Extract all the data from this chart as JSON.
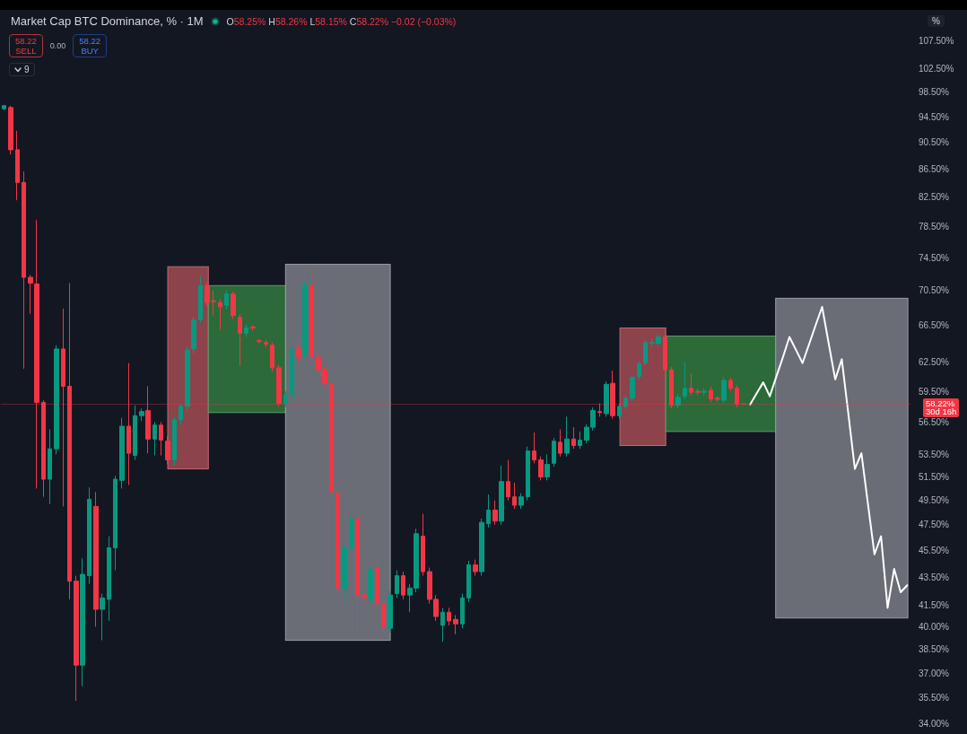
{
  "chart_data": {
    "type": "candlestick",
    "title": "Market Cap BTC Dominance, % · 1M",
    "categories": [
      null,
      null,
      null,
      null,
      null,
      null,
      null,
      null,
      null,
      null,
      null,
      null,
      null,
      null,
      null,
      null,
      null,
      null,
      null,
      null,
      null,
      null,
      null,
      null,
      null,
      null,
      null,
      null,
      null,
      null,
      null,
      null,
      null,
      null,
      null,
      null,
      null,
      null,
      null,
      null,
      null,
      null,
      null,
      null,
      null,
      null,
      null,
      null,
      null,
      null,
      null,
      null,
      null,
      null,
      null,
      null,
      null,
      null,
      null,
      null,
      null,
      null,
      null,
      null,
      null,
      null,
      null,
      null,
      null,
      null,
      null,
      null,
      null,
      null,
      null,
      null,
      null,
      null,
      null,
      null,
      null,
      null,
      null,
      null,
      null,
      null,
      null,
      null,
      null,
      null,
      null,
      null,
      null,
      null,
      null,
      null,
      null,
      null,
      null,
      null,
      null,
      null,
      null,
      null,
      null,
      null,
      null,
      null,
      null,
      null,
      null,
      null,
      null,
      null,
      null,
      null,
      null,
      null,
      null,
      null,
      null,
      null,
      null,
      null,
      null,
      null,
      null,
      null,
      null,
      null,
      null,
      null,
      null,
      null,
      null,
      null,
      null,
      null,
      null
    ],
    "ohlc": [
      [
        95.8,
        96.4,
        95.6,
        96.3
      ],
      [
        96.0,
        96.3,
        88.7,
        89.4
      ],
      [
        89.4,
        92.3,
        82.1,
        84.6
      ],
      [
        84.6,
        86.2,
        61.8,
        72.1
      ],
      [
        72.1,
        72.4,
        67.8,
        71.4
      ],
      [
        71.3,
        79.4,
        50.5,
        58.4
      ],
      [
        58.4,
        58.6,
        49.8,
        51.3
      ],
      [
        51.3,
        55.8,
        49.2,
        54.0
      ],
      [
        54.0,
        64.3,
        53.5,
        63.9
      ],
      [
        63.9,
        68.4,
        49.0,
        60.0
      ],
      [
        60.0,
        71.4,
        41.9,
        43.2
      ],
      [
        43.2,
        43.6,
        35.3,
        37.5
      ],
      [
        37.5,
        44.9,
        36.2,
        43.7
      ],
      [
        43.6,
        50.6,
        43.0,
        49.6
      ],
      [
        49.0,
        50.2,
        40.0,
        41.2
      ],
      [
        41.2,
        42.3,
        39.1,
        42.0
      ],
      [
        41.9,
        46.6,
        40.4,
        45.7
      ],
      [
        45.7,
        51.6,
        44.0,
        51.3
      ],
      [
        51.2,
        56.9,
        50.5,
        56.1
      ],
      [
        56.1,
        62.4,
        50.8,
        53.6
      ],
      [
        53.4,
        58.1,
        53.0,
        57.1
      ],
      [
        57.1,
        57.8,
        56.6,
        57.5
      ],
      [
        57.6,
        60.0,
        53.6,
        54.9
      ],
      [
        54.9,
        56.5,
        53.4,
        56.2
      ],
      [
        56.2,
        56.5,
        53.4,
        54.8
      ],
      [
        54.7,
        55.2,
        52.6,
        53.0
      ],
      [
        53.0,
        57.0,
        52.5,
        56.7
      ],
      [
        56.7,
        58.3,
        56.2,
        58.0
      ],
      [
        58.0,
        64.2,
        57.6,
        63.8
      ],
      [
        63.9,
        67.5,
        63.4,
        67.1
      ],
      [
        67.1,
        72.2,
        66.8,
        71.1
      ],
      [
        71.1,
        71.6,
        68.6,
        69.1
      ],
      [
        69.3,
        70.5,
        67.6,
        69.2
      ],
      [
        69.1,
        69.5,
        66.0,
        68.6
      ],
      [
        68.8,
        70.5,
        68.3,
        70.1
      ],
      [
        70.1,
        70.4,
        67.2,
        67.6
      ],
      [
        67.4,
        67.8,
        62.1,
        65.6
      ],
      [
        65.6,
        66.6,
        65.2,
        66.2
      ],
      [
        66.3,
        66.5,
        65.9,
        66.2
      ],
      [
        64.8,
        65.0,
        64.5,
        64.7
      ],
      [
        64.6,
        64.9,
        64.1,
        64.4
      ],
      [
        64.3,
        64.6,
        61.5,
        61.9
      ],
      [
        61.9,
        62.2,
        58.0,
        58.3
      ],
      [
        58.3,
        59.5,
        57.9,
        59.1
      ],
      [
        59.1,
        64.2,
        58.8,
        63.9
      ],
      [
        63.9,
        64.5,
        62.6,
        63.1
      ],
      [
        63.3,
        71.6,
        62.9,
        71.1
      ],
      [
        71.1,
        73.3,
        62.6,
        63.1
      ],
      [
        63.0,
        63.4,
        61.4,
        61.7
      ],
      [
        61.7,
        62.0,
        60.0,
        60.3
      ],
      [
        60.2,
        60.6,
        49.8,
        50.2
      ],
      [
        50.1,
        50.4,
        42.3,
        42.7
      ],
      [
        42.7,
        46.0,
        41.8,
        45.7
      ],
      [
        45.7,
        48.5,
        45.3,
        48.0
      ],
      [
        48.0,
        48.4,
        39.6,
        42.2
      ],
      [
        42.2,
        42.5,
        41.7,
        42.0
      ],
      [
        41.9,
        44.3,
        41.6,
        44.0
      ],
      [
        44.2,
        44.6,
        41.3,
        41.6
      ],
      [
        41.6,
        41.9,
        39.7,
        40.0
      ],
      [
        39.9,
        42.5,
        39.6,
        42.2
      ],
      [
        42.3,
        44.0,
        42.0,
        43.6
      ],
      [
        43.6,
        43.9,
        41.9,
        42.2
      ],
      [
        42.2,
        43.0,
        41.0,
        42.7
      ],
      [
        42.7,
        47.2,
        42.4,
        46.8
      ],
      [
        46.6,
        48.4,
        43.6,
        43.9
      ],
      [
        43.9,
        44.2,
        41.6,
        41.9
      ],
      [
        41.9,
        42.2,
        40.4,
        40.7
      ],
      [
        40.1,
        41.3,
        39.0,
        41.0
      ],
      [
        41.0,
        41.3,
        40.1,
        40.4
      ],
      [
        40.5,
        40.8,
        39.5,
        40.2
      ],
      [
        40.2,
        42.3,
        39.9,
        42.0
      ],
      [
        42.0,
        44.7,
        41.7,
        44.4
      ],
      [
        44.4,
        44.8,
        43.6,
        43.9
      ],
      [
        43.9,
        48.0,
        43.6,
        47.7
      ],
      [
        47.6,
        50.0,
        47.3,
        48.7
      ],
      [
        48.7,
        49.5,
        47.5,
        47.8
      ],
      [
        47.8,
        52.5,
        47.5,
        51.1
      ],
      [
        51.1,
        53.0,
        49.5,
        49.8
      ],
      [
        49.8,
        51.0,
        48.8,
        49.1
      ],
      [
        49.1,
        50.1,
        48.8,
        49.8
      ],
      [
        49.8,
        54.2,
        49.5,
        53.8
      ],
      [
        53.8,
        55.5,
        52.7,
        53.0
      ],
      [
        53.0,
        53.3,
        51.2,
        51.5
      ],
      [
        51.5,
        53.5,
        51.2,
        52.6
      ],
      [
        52.7,
        55.0,
        52.4,
        54.7
      ],
      [
        54.6,
        55.8,
        53.3,
        53.6
      ],
      [
        53.6,
        57.0,
        53.3,
        54.9
      ],
      [
        54.9,
        56.0,
        54.0,
        54.3
      ],
      [
        54.3,
        55.6,
        54.0,
        54.8
      ],
      [
        54.8,
        56.3,
        54.5,
        56.0
      ],
      [
        56.0,
        57.9,
        55.7,
        57.6
      ],
      [
        57.5,
        58.3,
        57.0,
        57.4
      ],
      [
        57.3,
        60.5,
        57.0,
        60.2
      ],
      [
        60.3,
        61.6,
        56.8,
        57.1
      ],
      [
        57.1,
        58.3,
        56.8,
        58.0
      ],
      [
        58.0,
        59.1,
        57.7,
        58.8
      ],
      [
        58.8,
        61.2,
        58.5,
        60.9
      ],
      [
        61.0,
        62.6,
        60.7,
        62.3
      ],
      [
        62.4,
        64.9,
        62.1,
        64.6
      ],
      [
        64.5,
        65.0,
        64.1,
        64.6
      ],
      [
        64.5,
        65.5,
        64.2,
        65.2
      ],
      [
        65.2,
        65.5,
        61.4,
        61.7
      ],
      [
        61.7,
        62.0,
        57.8,
        58.1
      ],
      [
        58.1,
        59.2,
        57.8,
        58.9
      ],
      [
        59.0,
        62.5,
        58.7,
        59.8
      ],
      [
        59.8,
        61.3,
        59.1,
        59.4
      ],
      [
        59.5,
        59.8,
        59.1,
        59.4
      ],
      [
        59.4,
        59.8,
        59.1,
        59.5
      ],
      [
        59.6,
        60.0,
        58.4,
        58.7
      ],
      [
        58.8,
        59.0,
        58.5,
        58.7
      ],
      [
        58.6,
        60.9,
        58.3,
        60.6
      ],
      [
        60.6,
        60.9,
        59.5,
        59.8
      ],
      [
        59.8,
        60.1,
        57.9,
        58.2
      ],
      [
        58.25,
        58.26,
        58.15,
        58.22
      ],
      null,
      null,
      null,
      null,
      null,
      null,
      null,
      null,
      null,
      null,
      null,
      null,
      null,
      null,
      null,
      null,
      null,
      null,
      null,
      null,
      null,
      null,
      null,
      null,
      null
    ],
    "colors": [
      "#089981",
      "#f23645",
      "#f23645",
      "#f23645",
      "#f23645",
      "#f23645",
      "#f23645",
      "#089981",
      "#089981",
      "#f23645",
      "#f23645",
      "#f23645",
      "#089981",
      "#089981",
      "#f23645",
      "#089981",
      "#089981",
      "#089981",
      "#089981",
      "#f23645",
      "#089981",
      "#089981",
      "#f23645",
      "#089981",
      "#f23645",
      "#f23645",
      "#089981",
      "#089981",
      "#089981",
      "#089981",
      "#089981",
      "#f23645",
      "#f23645",
      "#f23645",
      "#089981",
      "#f23645",
      "#f23645",
      "#089981",
      "#f23645",
      "#f23645",
      "#f23645",
      "#f23645",
      "#f23645",
      "#089981",
      "#089981",
      "#f23645",
      "#089981",
      "#f23645",
      "#f23645",
      "#f23645",
      "#f23645",
      "#f23645",
      "#089981",
      "#089981",
      "#f23645",
      "#f23645",
      "#089981",
      "#f23645",
      "#f23645",
      "#089981",
      "#089981",
      "#f23645",
      "#089981",
      "#089981",
      "#f23645",
      "#f23645",
      "#f23645",
      "#089981",
      "#f23645",
      "#f23645",
      "#089981",
      "#089981",
      "#f23645",
      "#089981",
      "#089981",
      "#f23645",
      "#089981",
      "#f23645",
      "#f23645",
      "#089981",
      "#089981",
      "#f23645",
      "#f23645",
      "#089981",
      "#089981",
      "#f23645",
      "#089981",
      "#f23645",
      "#089981",
      "#089981",
      "#089981",
      "#f23645",
      "#089981",
      "#f23645",
      "#089981",
      "#089981",
      "#089981",
      "#089981",
      "#089981",
      "#089981",
      "#089981",
      "#f23645",
      "#f23645",
      "#089981",
      "#089981",
      "#f23645",
      "#f23645",
      "#089981",
      "#f23645",
      "#f23645",
      "#089981",
      "#f23645",
      "#f23645",
      "#f23645",
      null,
      null,
      null,
      null,
      null,
      null,
      null,
      null,
      null,
      null,
      null,
      null,
      null,
      null,
      null,
      null,
      null,
      null,
      null,
      null,
      null,
      null,
      null,
      null,
      null
    ],
    "series": [
      {
        "type": "line",
        "color": "#ffffff",
        "values": [
          null,
          null,
          null,
          null,
          null,
          null,
          null,
          null,
          null,
          null,
          null,
          null,
          null,
          null,
          null,
          null,
          null,
          null,
          null,
          null,
          null,
          null,
          null,
          null,
          null,
          null,
          null,
          null,
          null,
          null,
          null,
          null,
          null,
          null,
          null,
          null,
          null,
          null,
          null,
          null,
          null,
          null,
          null,
          null,
          null,
          null,
          null,
          null,
          null,
          null,
          null,
          null,
          null,
          null,
          null,
          null,
          null,
          null,
          null,
          null,
          null,
          null,
          null,
          null,
          null,
          null,
          null,
          null,
          null,
          null,
          null,
          null,
          null,
          null,
          null,
          null,
          null,
          null,
          null,
          null,
          null,
          null,
          null,
          null,
          null,
          null,
          null,
          null,
          null,
          null,
          null,
          null,
          null,
          null,
          null,
          null,
          null,
          null,
          null,
          null,
          null,
          null,
          null,
          null,
          null,
          null,
          null,
          null,
          null,
          null,
          null,
          null,
          null,
          null,
          58.2,
          59.3,
          60.4,
          59.0,
          61.0,
          63.0,
          65.2,
          63.8,
          62.4,
          64.4,
          66.5,
          68.6,
          64.5,
          60.7,
          62.8,
          57.3,
          52.2,
          53.6,
          49.2,
          45.2,
          46.6,
          41.3,
          44.1,
          42.4,
          42.9
        ]
      }
    ],
    "ylim": [
      34,
      107.5
    ],
    "yticks": [
      {
        "value": 107.5,
        "label": "107.50%"
      },
      {
        "value": 102.5,
        "label": "102.50%"
      },
      {
        "value": 98.5,
        "label": "98.50%"
      },
      {
        "value": 94.5,
        "label": "94.50%"
      },
      {
        "value": 90.5,
        "label": "90.50%"
      },
      {
        "value": 86.5,
        "label": "86.50%"
      },
      {
        "value": 82.5,
        "label": "82.50%"
      },
      {
        "value": 78.5,
        "label": "78.50%"
      },
      {
        "value": 74.5,
        "label": "74.50%"
      },
      {
        "value": 70.5,
        "label": "70.50%"
      },
      {
        "value": 66.5,
        "label": "66.50%"
      },
      {
        "value": 62.5,
        "label": "62.50%"
      },
      {
        "value": 59.5,
        "label": "59.50%"
      },
      {
        "value": 56.5,
        "label": "56.50%"
      },
      {
        "value": 53.5,
        "label": "53.50%"
      },
      {
        "value": 51.5,
        "label": "51.50%"
      },
      {
        "value": 49.5,
        "label": "49.50%"
      },
      {
        "value": 47.5,
        "label": "47.50%"
      },
      {
        "value": 45.5,
        "label": "45.50%"
      },
      {
        "value": 43.5,
        "label": "43.50%"
      },
      {
        "value": 41.5,
        "label": "41.50%"
      },
      {
        "value": 40,
        "label": "40.00%"
      },
      {
        "value": 38.5,
        "label": "38.50%"
      },
      {
        "value": 37,
        "label": "37.00%"
      },
      {
        "value": 35.5,
        "label": "35.50%"
      },
      {
        "value": 34,
        "label": "34.00%"
      }
    ],
    "log": true,
    "grid": false,
    "tick_labels": "y",
    "marker": "none",
    "line_style": "solid",
    "ref_lines": [
      {
        "axis": "y",
        "value": 58.22,
        "label": "58.22%",
        "color": "#f23645"
      }
    ],
    "annotations": [
      "O58.25%",
      "H58.26%",
      "L58.15%",
      "C58.22%",
      "−0.02 (−0.03%)",
      "58.22",
      "SELL",
      "0.00",
      "58.22",
      "BUY",
      "9",
      "%",
      "30d 16h"
    ]
  }
}
